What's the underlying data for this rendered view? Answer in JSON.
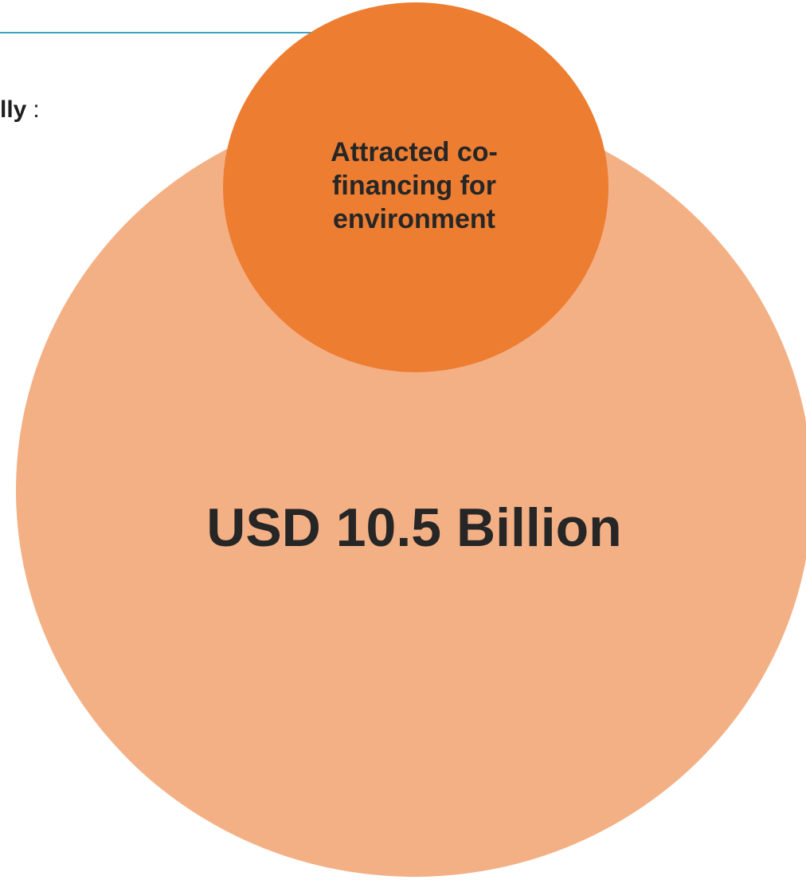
{
  "heading": {
    "bold_text": "lly",
    "suffix": ":"
  },
  "small_circle": {
    "label_lines": [
      "Attracted co-",
      "financing for",
      "environment"
    ]
  },
  "big_circle": {
    "value": "USD 10.5 Billion"
  },
  "colors": {
    "rule": "#3aa6c4",
    "small_circle": "#ed7d31",
    "big_circle": "#f4b085",
    "text": "#262626"
  }
}
